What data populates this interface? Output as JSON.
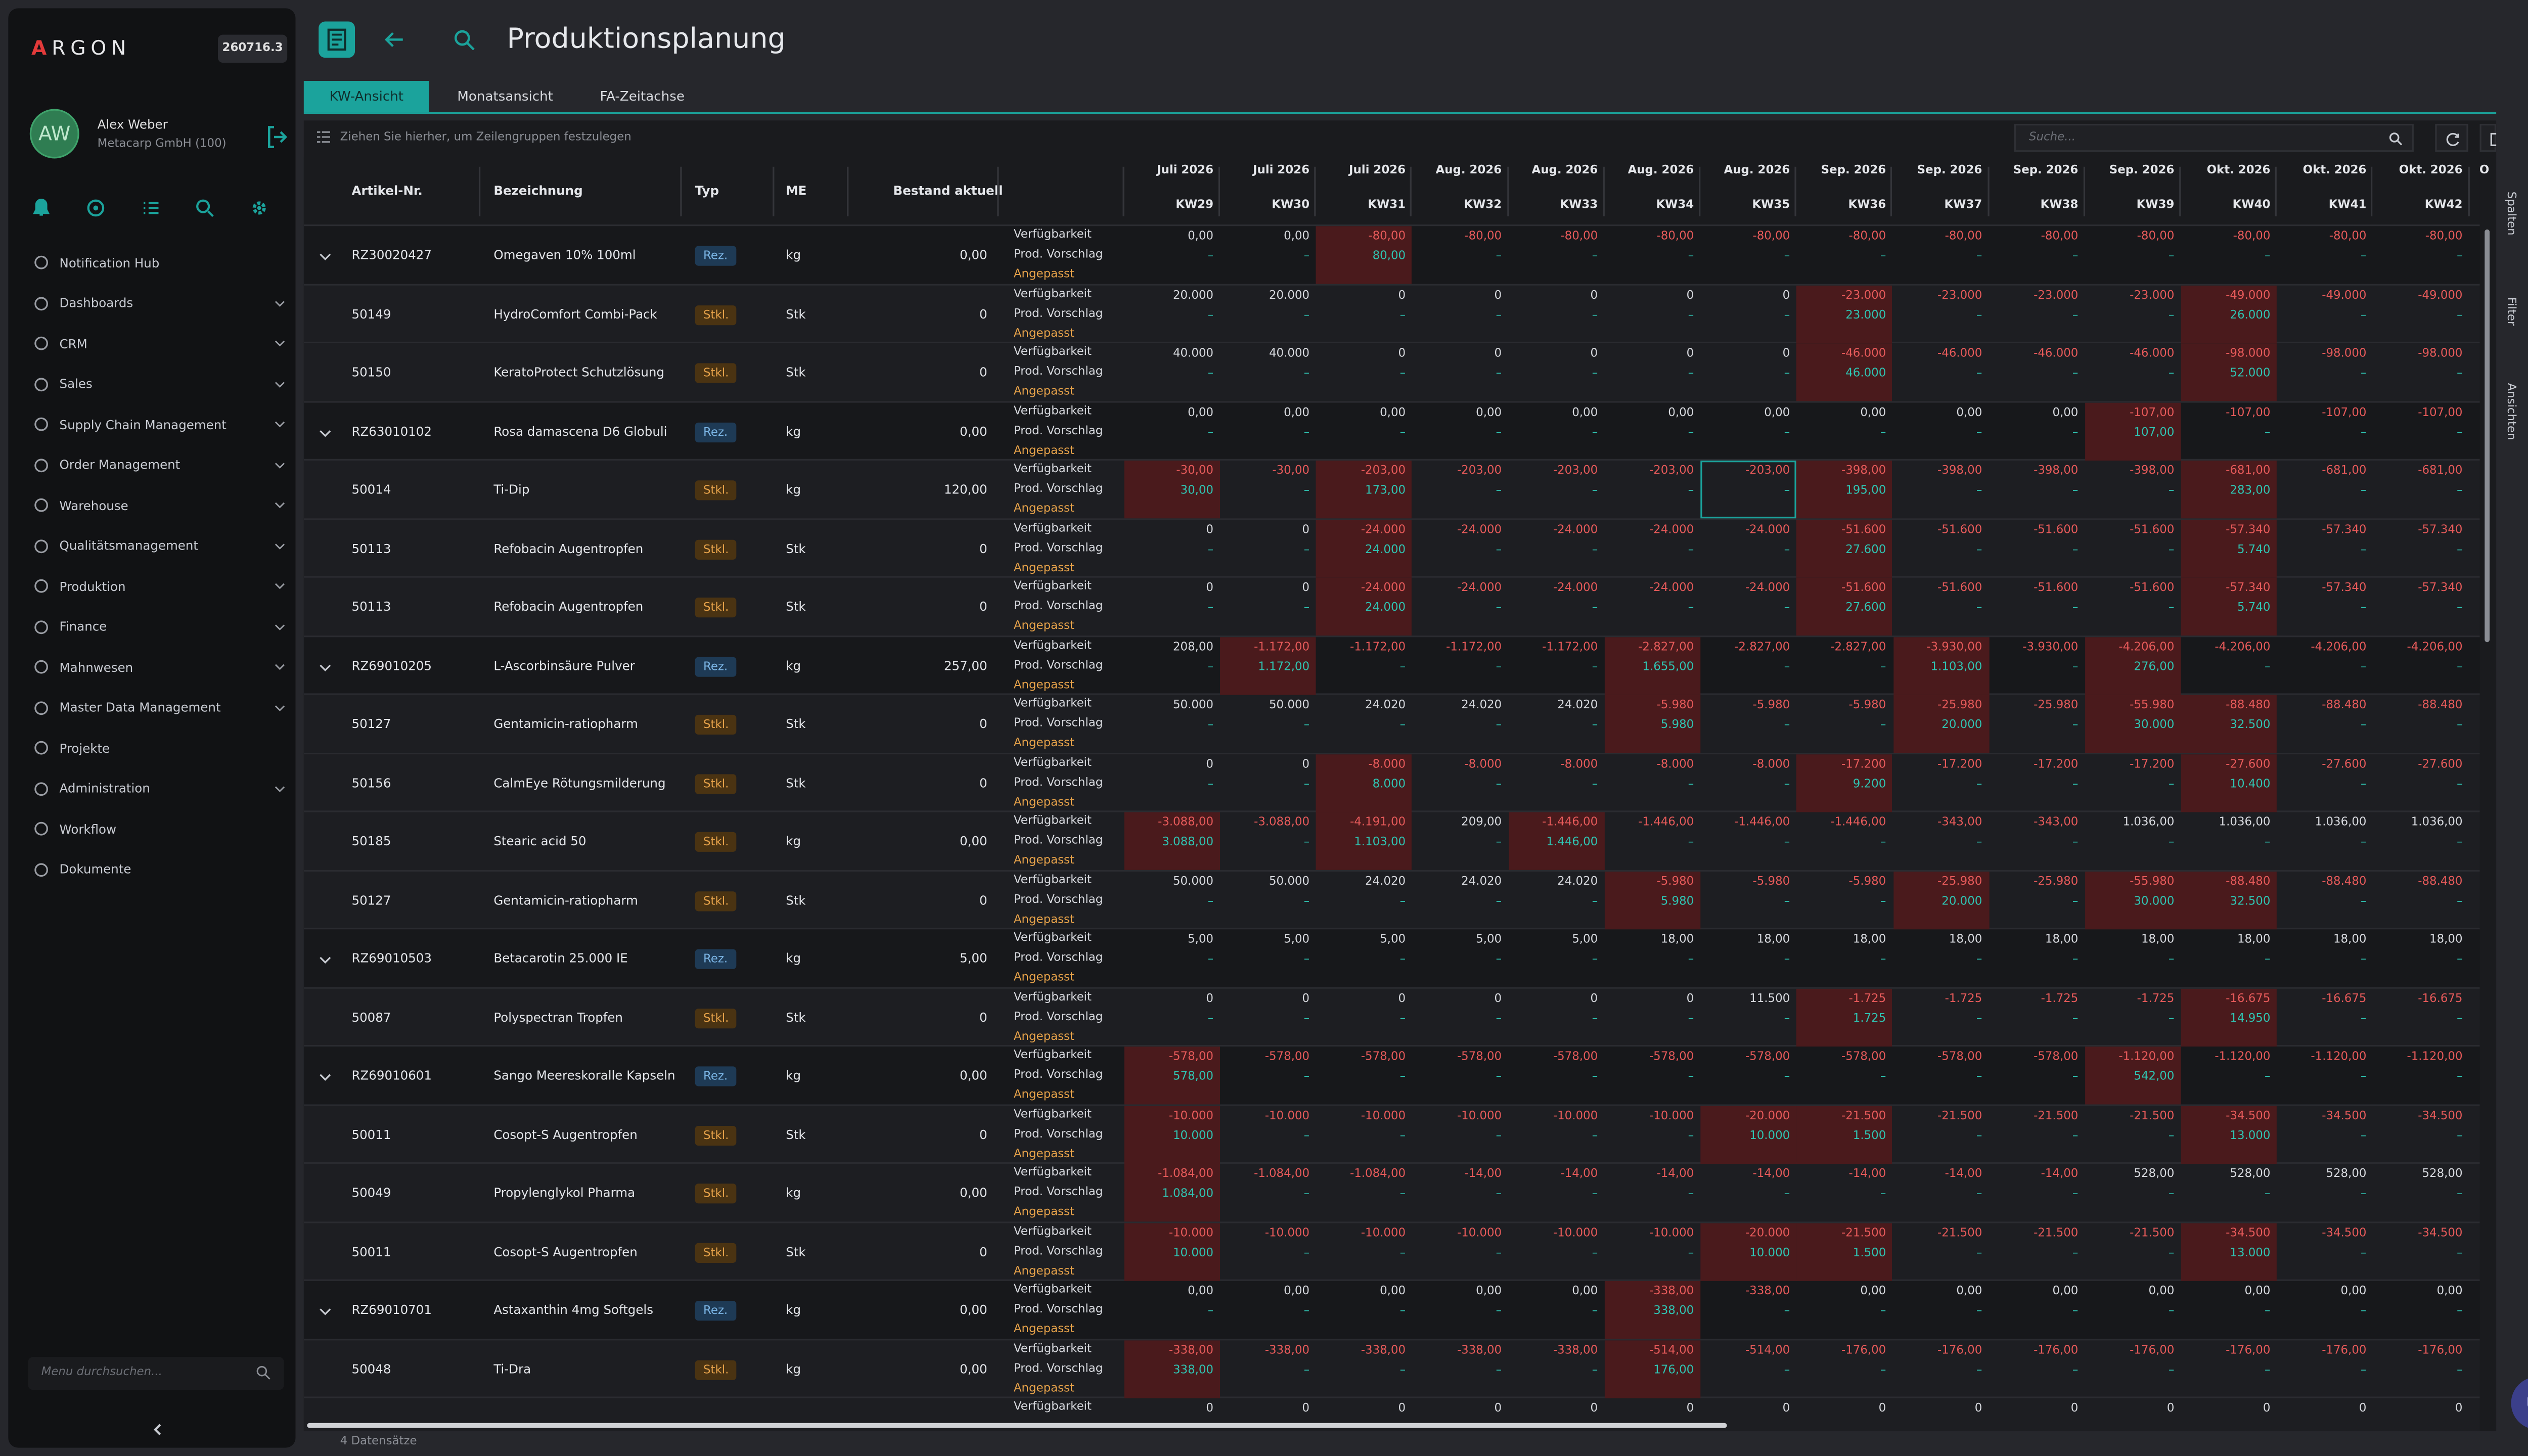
{
  "app": {
    "logo": "ARGON",
    "version": "260716.3"
  },
  "user": {
    "initials": "AW",
    "name": "Alex Weber",
    "company": "Metacarp GmbH (100)"
  },
  "nav": [
    {
      "label": "Notification Hub",
      "icon": "bell-icon",
      "chev": false
    },
    {
      "label": "Dashboards",
      "icon": "dashboard-icon",
      "chev": true
    },
    {
      "label": "CRM",
      "icon": "users-icon",
      "chev": true
    },
    {
      "label": "Sales",
      "icon": "tag-icon",
      "chev": true
    },
    {
      "label": "Supply Chain Management",
      "icon": "truck-icon",
      "chev": true
    },
    {
      "label": "Order Management",
      "icon": "cart-icon",
      "chev": true
    },
    {
      "label": "Warehouse",
      "icon": "warehouse-icon",
      "chev": true
    },
    {
      "label": "Qualitätsmanagement",
      "icon": "check-icon",
      "chev": true
    },
    {
      "label": "Produktion",
      "icon": "folder-icon",
      "chev": true
    },
    {
      "label": "Finance",
      "icon": "finance-icon",
      "chev": true
    },
    {
      "label": "Mahnwesen",
      "icon": "warning-icon",
      "chev": true
    },
    {
      "label": "Master Data Management",
      "icon": "database-icon",
      "chev": true
    },
    {
      "label": "Projekte",
      "icon": "pin-icon",
      "chev": false
    },
    {
      "label": "Administration",
      "icon": "shield-icon",
      "chev": true
    },
    {
      "label": "Workflow",
      "icon": "workflow-icon",
      "chev": false
    },
    {
      "label": "Dokumente",
      "icon": "document-icon",
      "chev": false
    }
  ],
  "menu_search_placeholder": "Menu durchsuchen...",
  "page": {
    "title": "Produktionsplanung"
  },
  "tabs": [
    "KW-Ansicht",
    "Monatsansicht",
    "FA-Zeitachse"
  ],
  "grid": {
    "group_hint": "Ziehen Sie hierher, um Zeilengruppen festzulegen",
    "search_placeholder": "Suche...",
    "columns": {
      "artikel": "Artikel-Nr.",
      "bez": "Bezeichnung",
      "typ": "Typ",
      "me": "ME",
      "bestand": "Bestand aktuell"
    },
    "months": [
      "Juli 2026",
      "Juli 2026",
      "Juli 2026",
      "Aug. 2026",
      "Aug. 2026",
      "Aug. 2026",
      "Aug. 2026",
      "Sep. 2026",
      "Sep. 2026",
      "Sep. 2026",
      "Sep. 2026",
      "Okt. 2026",
      "Okt. 2026",
      "Okt. 2026",
      "O"
    ],
    "weeks": [
      "KW29",
      "KW30",
      "KW31",
      "KW32",
      "KW33",
      "KW34",
      "KW35",
      "KW36",
      "KW37",
      "KW38",
      "KW39",
      "KW40",
      "KW41",
      "KW42"
    ],
    "labels": {
      "v": "Verfügbarkeit",
      "p": "Prod. Vorschlag",
      "a": "Angepasst"
    },
    "footer": "4 Datensätze",
    "side_tabs": [
      "Spalten",
      "Filter",
      "Ansichten"
    ]
  },
  "rows": [
    {
      "exp": true,
      "art": "RZ30020427",
      "bez": "Omegaven 10% 100ml",
      "typ": "Rez.",
      "me": "kg",
      "best": "0,00",
      "v": [
        "0,00",
        "0,00",
        "-80,00",
        "-80,00",
        "-80,00",
        "-80,00",
        "-80,00",
        "-80,00",
        "-80,00",
        "-80,00",
        "-80,00",
        "-80,00",
        "-80,00",
        "-80,00"
      ],
      "p": [
        "–",
        "–",
        "80,00",
        "–",
        "–",
        "–",
        "–",
        "–",
        "–",
        "–",
        "–",
        "–",
        "–",
        "–"
      ],
      "r": [
        2
      ]
    },
    {
      "exp": false,
      "art": "50149",
      "bez": "HydroComfort Combi-Pack",
      "typ": "Stkl.",
      "me": "Stk",
      "best": "0",
      "v": [
        "20.000",
        "20.000",
        "0",
        "0",
        "0",
        "0",
        "0",
        "-23.000",
        "-23.000",
        "-23.000",
        "-23.000",
        "-49.000",
        "-49.000",
        "-49.000"
      ],
      "p": [
        "–",
        "–",
        "–",
        "–",
        "–",
        "–",
        "–",
        "23.000",
        "–",
        "–",
        "–",
        "26.000",
        "–",
        "–"
      ],
      "r": [
        7,
        11
      ]
    },
    {
      "exp": false,
      "art": "50150",
      "bez": "KeratoProtect Schutzlösung",
      "typ": "Stkl.",
      "me": "Stk",
      "best": "0",
      "v": [
        "40.000",
        "40.000",
        "0",
        "0",
        "0",
        "0",
        "0",
        "-46.000",
        "-46.000",
        "-46.000",
        "-46.000",
        "-98.000",
        "-98.000",
        "-98.000"
      ],
      "p": [
        "–",
        "–",
        "–",
        "–",
        "–",
        "–",
        "–",
        "46.000",
        "–",
        "–",
        "–",
        "52.000",
        "–",
        "–"
      ],
      "r": [
        7,
        11
      ]
    },
    {
      "exp": true,
      "art": "RZ63010102",
      "bez": "Rosa damascena D6 Globuli",
      "typ": "Rez.",
      "me": "kg",
      "best": "0,00",
      "v": [
        "0,00",
        "0,00",
        "0,00",
        "0,00",
        "0,00",
        "0,00",
        "0,00",
        "0,00",
        "0,00",
        "0,00",
        "-107,00",
        "-107,00",
        "-107,00",
        "-107,00"
      ],
      "p": [
        "–",
        "–",
        "–",
        "–",
        "–",
        "–",
        "–",
        "–",
        "–",
        "–",
        "107,00",
        "–",
        "–",
        "–"
      ],
      "r": [
        10
      ]
    },
    {
      "exp": false,
      "art": "50014",
      "bez": "Ti-Dip",
      "typ": "Stkl.",
      "me": "kg",
      "best": "120,00",
      "v": [
        "-30,00",
        "-30,00",
        "-203,00",
        "-203,00",
        "-203,00",
        "-203,00",
        "-203,00",
        "-398,00",
        "-398,00",
        "-398,00",
        "-398,00",
        "-681,00",
        "-681,00",
        "-681,00"
      ],
      "p": [
        "30,00",
        "–",
        "173,00",
        "–",
        "–",
        "–",
        "–",
        "195,00",
        "–",
        "–",
        "–",
        "283,00",
        "–",
        "–"
      ],
      "r": [
        0,
        2,
        7,
        11
      ],
      "sel": 6
    },
    {
      "exp": false,
      "art": "50113",
      "bez": "Refobacin Augentropfen",
      "typ": "Stkl.",
      "me": "Stk",
      "best": "0",
      "v": [
        "0",
        "0",
        "-24.000",
        "-24.000",
        "-24.000",
        "-24.000",
        "-24.000",
        "-51.600",
        "-51.600",
        "-51.600",
        "-51.600",
        "-57.340",
        "-57.340",
        "-57.340"
      ],
      "p": [
        "–",
        "–",
        "24.000",
        "–",
        "–",
        "–",
        "–",
        "27.600",
        "–",
        "–",
        "–",
        "5.740",
        "–",
        "–"
      ],
      "r": [
        2,
        7,
        11
      ]
    },
    {
      "exp": false,
      "art": "50113",
      "bez": "Refobacin Augentropfen",
      "typ": "Stkl.",
      "me": "Stk",
      "best": "0",
      "v": [
        "0",
        "0",
        "-24.000",
        "-24.000",
        "-24.000",
        "-24.000",
        "-24.000",
        "-51.600",
        "-51.600",
        "-51.600",
        "-51.600",
        "-57.340",
        "-57.340",
        "-57.340"
      ],
      "p": [
        "–",
        "–",
        "24.000",
        "–",
        "–",
        "–",
        "–",
        "27.600",
        "–",
        "–",
        "–",
        "5.740",
        "–",
        "–"
      ],
      "r": [
        2,
        7,
        11
      ]
    },
    {
      "exp": true,
      "art": "RZ69010205",
      "bez": "L-Ascorbinsäure Pulver",
      "typ": "Rez.",
      "me": "kg",
      "best": "257,00",
      "v": [
        "208,00",
        "-1.172,00",
        "-1.172,00",
        "-1.172,00",
        "-1.172,00",
        "-2.827,00",
        "-2.827,00",
        "-2.827,00",
        "-3.930,00",
        "-3.930,00",
        "-4.206,00",
        "-4.206,00",
        "-4.206,00",
        "-4.206,00"
      ],
      "p": [
        "–",
        "1.172,00",
        "–",
        "–",
        "–",
        "1.655,00",
        "–",
        "–",
        "1.103,00",
        "–",
        "276,00",
        "–",
        "–",
        "–"
      ],
      "r": [
        1,
        5,
        8,
        10
      ]
    },
    {
      "exp": false,
      "art": "50127",
      "bez": "Gentamicin-ratiopharm",
      "typ": "Stkl.",
      "me": "Stk",
      "best": "0",
      "v": [
        "50.000",
        "50.000",
        "24.020",
        "24.020",
        "24.020",
        "-5.980",
        "-5.980",
        "-5.980",
        "-25.980",
        "-25.980",
        "-55.980",
        "-88.480",
        "-88.480",
        "-88.480"
      ],
      "p": [
        "–",
        "–",
        "–",
        "–",
        "–",
        "5.980",
        "–",
        "–",
        "20.000",
        "–",
        "30.000",
        "32.500",
        "–",
        "–"
      ],
      "r": [
        5,
        8,
        10,
        11
      ]
    },
    {
      "exp": false,
      "art": "50156",
      "bez": "CalmEye Rötungsmilderung",
      "typ": "Stkl.",
      "me": "Stk",
      "best": "0",
      "v": [
        "0",
        "0",
        "-8.000",
        "-8.000",
        "-8.000",
        "-8.000",
        "-8.000",
        "-17.200",
        "-17.200",
        "-17.200",
        "-17.200",
        "-27.600",
        "-27.600",
        "-27.600"
      ],
      "p": [
        "–",
        "–",
        "8.000",
        "–",
        "–",
        "–",
        "–",
        "9.200",
        "–",
        "–",
        "–",
        "10.400",
        "–",
        "–"
      ],
      "r": [
        2,
        7,
        11
      ]
    },
    {
      "exp": false,
      "art": "50185",
      "bez": "Stearic acid 50",
      "typ": "Stkl.",
      "me": "kg",
      "best": "0,00",
      "v": [
        "-3.088,00",
        "-3.088,00",
        "-4.191,00",
        "209,00",
        "-1.446,00",
        "-1.446,00",
        "-1.446,00",
        "-1.446,00",
        "-343,00",
        "-343,00",
        "1.036,00",
        "1.036,00",
        "1.036,00",
        "1.036,00"
      ],
      "p": [
        "3.088,00",
        "–",
        "1.103,00",
        "–",
        "1.446,00",
        "–",
        "–",
        "–",
        "–",
        "–",
        "–",
        "–",
        "–",
        "–"
      ],
      "r": [
        0,
        2,
        4
      ]
    },
    {
      "exp": false,
      "art": "50127",
      "bez": "Gentamicin-ratiopharm",
      "typ": "Stkl.",
      "me": "Stk",
      "best": "0",
      "v": [
        "50.000",
        "50.000",
        "24.020",
        "24.020",
        "24.020",
        "-5.980",
        "-5.980",
        "-5.980",
        "-25.980",
        "-25.980",
        "-55.980",
        "-88.480",
        "-88.480",
        "-88.480"
      ],
      "p": [
        "–",
        "–",
        "–",
        "–",
        "–",
        "5.980",
        "–",
        "–",
        "20.000",
        "–",
        "30.000",
        "32.500",
        "–",
        "–"
      ],
      "r": [
        5,
        8,
        10,
        11
      ]
    },
    {
      "exp": true,
      "art": "RZ69010503",
      "bez": "Betacarotin 25.000 IE",
      "typ": "Rez.",
      "me": "kg",
      "best": "5,00",
      "v": [
        "5,00",
        "5,00",
        "5,00",
        "5,00",
        "5,00",
        "18,00",
        "18,00",
        "18,00",
        "18,00",
        "18,00",
        "18,00",
        "18,00",
        "18,00",
        "18,00"
      ],
      "p": [
        "–",
        "–",
        "–",
        "–",
        "–",
        "–",
        "–",
        "–",
        "–",
        "–",
        "–",
        "–",
        "–",
        "–"
      ],
      "r": []
    },
    {
      "exp": false,
      "art": "50087",
      "bez": "Polyspectran Tropfen",
      "typ": "Stkl.",
      "me": "Stk",
      "best": "0",
      "v": [
        "0",
        "0",
        "0",
        "0",
        "0",
        "0",
        "11.500",
        "-1.725",
        "-1.725",
        "-1.725",
        "-1.725",
        "-16.675",
        "-16.675",
        "-16.675"
      ],
      "p": [
        "–",
        "–",
        "–",
        "–",
        "–",
        "–",
        "–",
        "1.725",
        "–",
        "–",
        "–",
        "14.950",
        "–",
        "–"
      ],
      "r": [
        7,
        11
      ]
    },
    {
      "exp": true,
      "art": "RZ69010601",
      "bez": "Sango Meereskoralle Kapseln",
      "typ": "Rez.",
      "me": "kg",
      "best": "0,00",
      "v": [
        "-578,00",
        "-578,00",
        "-578,00",
        "-578,00",
        "-578,00",
        "-578,00",
        "-578,00",
        "-578,00",
        "-578,00",
        "-578,00",
        "-1.120,00",
        "-1.120,00",
        "-1.120,00",
        "-1.120,00"
      ],
      "p": [
        "578,00",
        "–",
        "–",
        "–",
        "–",
        "–",
        "–",
        "–",
        "–",
        "–",
        "542,00",
        "–",
        "–",
        "–"
      ],
      "r": [
        0,
        10
      ]
    },
    {
      "exp": false,
      "art": "50011",
      "bez": "Cosopt-S Augentropfen",
      "typ": "Stkl.",
      "me": "Stk",
      "best": "0",
      "v": [
        "-10.000",
        "-10.000",
        "-10.000",
        "-10.000",
        "-10.000",
        "-10.000",
        "-20.000",
        "-21.500",
        "-21.500",
        "-21.500",
        "-21.500",
        "-34.500",
        "-34.500",
        "-34.500"
      ],
      "p": [
        "10.000",
        "–",
        "–",
        "–",
        "–",
        "–",
        "10.000",
        "1.500",
        "–",
        "–",
        "–",
        "13.000",
        "–",
        "–"
      ],
      "r": [
        0,
        6,
        7,
        11
      ]
    },
    {
      "exp": false,
      "art": "50049",
      "bez": "Propylenglykol Pharma",
      "typ": "Stkl.",
      "me": "kg",
      "best": "0,00",
      "v": [
        "-1.084,00",
        "-1.084,00",
        "-1.084,00",
        "-14,00",
        "-14,00",
        "-14,00",
        "-14,00",
        "-14,00",
        "-14,00",
        "-14,00",
        "528,00",
        "528,00",
        "528,00",
        "528,00"
      ],
      "p": [
        "1.084,00",
        "–",
        "–",
        "–",
        "–",
        "–",
        "–",
        "–",
        "–",
        "–",
        "–",
        "–",
        "–",
        "–"
      ],
      "r": [
        0
      ]
    },
    {
      "exp": false,
      "art": "50011",
      "bez": "Cosopt-S Augentropfen",
      "typ": "Stkl.",
      "me": "Stk",
      "best": "0",
      "v": [
        "-10.000",
        "-10.000",
        "-10.000",
        "-10.000",
        "-10.000",
        "-10.000",
        "-20.000",
        "-21.500",
        "-21.500",
        "-21.500",
        "-21.500",
        "-34.500",
        "-34.500",
        "-34.500"
      ],
      "p": [
        "10.000",
        "–",
        "–",
        "–",
        "–",
        "–",
        "10.000",
        "1.500",
        "–",
        "–",
        "–",
        "13.000",
        "–",
        "–"
      ],
      "r": [
        0,
        6,
        7,
        11
      ]
    },
    {
      "exp": true,
      "art": "RZ69010701",
      "bez": "Astaxanthin 4mg Softgels",
      "typ": "Rez.",
      "me": "kg",
      "best": "0,00",
      "v": [
        "0,00",
        "0,00",
        "0,00",
        "0,00",
        "0,00",
        "-338,00",
        "-338,00",
        "0,00",
        "0,00",
        "0,00",
        "0,00",
        "0,00",
        "0,00",
        "0,00"
      ],
      "p": [
        "–",
        "–",
        "–",
        "–",
        "–",
        "338,00",
        "–",
        "–",
        "–",
        "–",
        "–",
        "–",
        "–",
        "–"
      ],
      "r": [
        5
      ]
    },
    {
      "exp": false,
      "art": "50048",
      "bez": "Ti-Dra",
      "typ": "Stkl.",
      "me": "kg",
      "best": "0,00",
      "v": [
        "-338,00",
        "-338,00",
        "-338,00",
        "-338,00",
        "-338,00",
        "-514,00",
        "-514,00",
        "-176,00",
        "-176,00",
        "-176,00",
        "-176,00",
        "-176,00",
        "-176,00",
        "-176,00"
      ],
      "p": [
        "338,00",
        "–",
        "–",
        "–",
        "–",
        "176,00",
        "–",
        "–",
        "–",
        "–",
        "–",
        "–",
        "–",
        "–"
      ],
      "r": [
        0,
        5
      ]
    },
    {
      "exp": false,
      "art": "",
      "bez": "",
      "typ": "",
      "me": "",
      "best": "",
      "v": [
        "0",
        "0",
        "0",
        "0",
        "0",
        "0",
        "0",
        "0",
        "0",
        "0",
        "0",
        "0",
        "0",
        "0"
      ],
      "p": [],
      "r": []
    }
  ]
}
